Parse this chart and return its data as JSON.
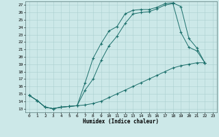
{
  "xlabel": "Humidex (Indice chaleur)",
  "bg_color": "#cce8e8",
  "line_color": "#1a6e6a",
  "grid_color": "#aacfcf",
  "xlim": [
    -0.5,
    23.5
  ],
  "ylim": [
    12.5,
    27.5
  ],
  "xticks": [
    0,
    1,
    2,
    3,
    4,
    5,
    6,
    7,
    8,
    9,
    10,
    11,
    12,
    13,
    14,
    15,
    16,
    17,
    18,
    19,
    20,
    21,
    22,
    23
  ],
  "yticks": [
    13,
    14,
    15,
    16,
    17,
    18,
    19,
    20,
    21,
    22,
    23,
    24,
    25,
    26,
    27
  ],
  "line1_x": [
    0,
    1,
    2,
    3,
    4,
    5,
    6,
    7,
    8,
    9,
    10,
    11,
    12,
    13,
    14,
    15,
    16,
    17,
    18,
    19,
    20,
    21,
    22
  ],
  "line1_y": [
    14.8,
    14.1,
    13.2,
    13.0,
    13.2,
    13.3,
    13.4,
    16.5,
    19.8,
    21.8,
    23.5,
    24.1,
    25.8,
    26.3,
    26.4,
    26.4,
    26.7,
    27.2,
    27.3,
    26.8,
    22.5,
    21.2,
    19.2
  ],
  "line2_x": [
    0,
    1,
    2,
    3,
    4,
    5,
    6,
    7,
    8,
    9,
    10,
    11,
    12,
    13,
    14,
    15,
    16,
    17,
    18,
    19,
    20,
    21,
    22
  ],
  "line2_y": [
    14.8,
    14.1,
    13.2,
    13.0,
    13.2,
    13.3,
    13.4,
    15.5,
    17.0,
    19.5,
    21.5,
    22.8,
    24.5,
    25.8,
    26.0,
    26.1,
    26.5,
    27.0,
    27.2,
    23.3,
    21.3,
    20.8,
    19.2
  ],
  "line3_x": [
    0,
    1,
    2,
    3,
    4,
    5,
    6,
    7,
    8,
    9,
    10,
    11,
    12,
    13,
    14,
    15,
    16,
    17,
    18,
    19,
    20,
    21,
    22
  ],
  "line3_y": [
    14.8,
    14.1,
    13.2,
    13.0,
    13.2,
    13.3,
    13.4,
    13.5,
    13.7,
    14.0,
    14.5,
    15.0,
    15.5,
    16.0,
    16.5,
    17.0,
    17.5,
    18.0,
    18.5,
    18.8,
    19.0,
    19.2,
    19.2
  ]
}
